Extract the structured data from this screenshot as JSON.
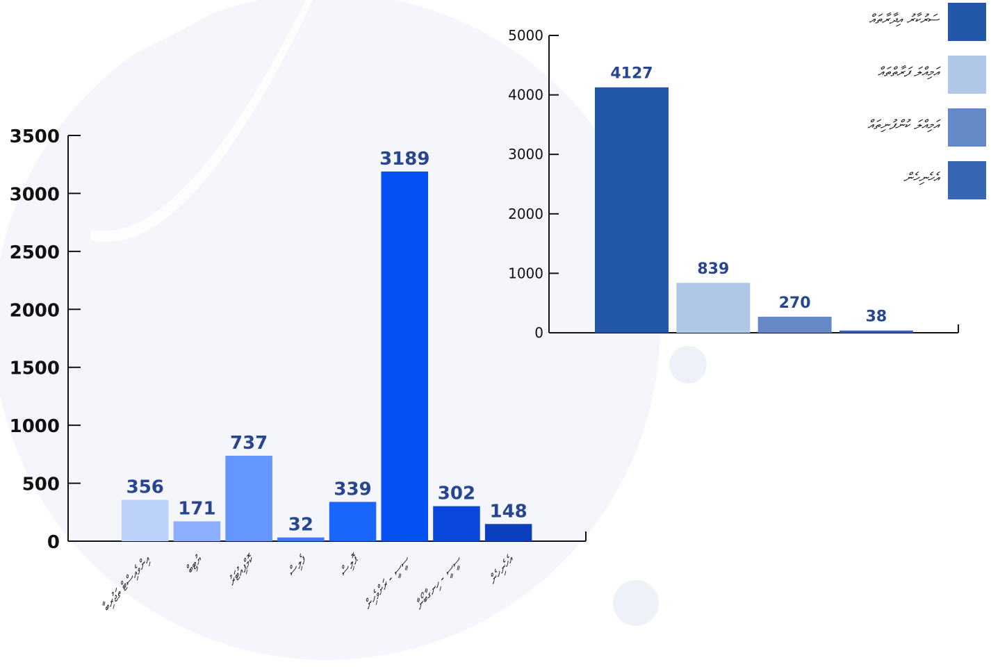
{
  "chart_data": [
    {
      "type": "bar",
      "categories": [
        "އިންވެއިސްޓް ތަޖުރިބާ",
        "ޔުޓިބް",
        "ކޮމްޕިއުޓަރު",
        "ފެލިސް",
        "ޕޮލިސް",
        "ސީސީ - ރަށްވެހިން",
        "ސީސީ - ހިނގާބޯނާ",
        "އެހެނިހެން"
      ],
      "values": [
        356,
        171,
        737,
        32,
        339,
        3189,
        302,
        148
      ],
      "colors": [
        "#bcd2fa",
        "#8cb0fb",
        "#6596fb",
        "#3d79fb",
        "#1a65fb",
        "#0450f1",
        "#0a48dc",
        "#0a3fbe"
      ],
      "ylim": [
        0,
        3500
      ],
      "yticks": [
        0,
        500,
        1000,
        1500,
        2000,
        2500,
        3000,
        3500
      ],
      "grid": false
    },
    {
      "type": "bar",
      "categories": [
        "ސަރުކާރު އިދާރާތައް",
        "އަމިއްލަ ފަރާތްތައް",
        "އަމިއްލަ ކުންފުނިތައް",
        "އެހެނިހެން"
      ],
      "values": [
        4127,
        839,
        270,
        38
      ],
      "colors": [
        "#2358a9",
        "#b0c8e8",
        "#6589c6",
        "#3766b4"
      ],
      "ylim": [
        0,
        5000
      ],
      "yticks": [
        0,
        1000,
        2000,
        3000,
        4000,
        5000
      ],
      "grid": false,
      "legend_position": "top-right"
    }
  ]
}
